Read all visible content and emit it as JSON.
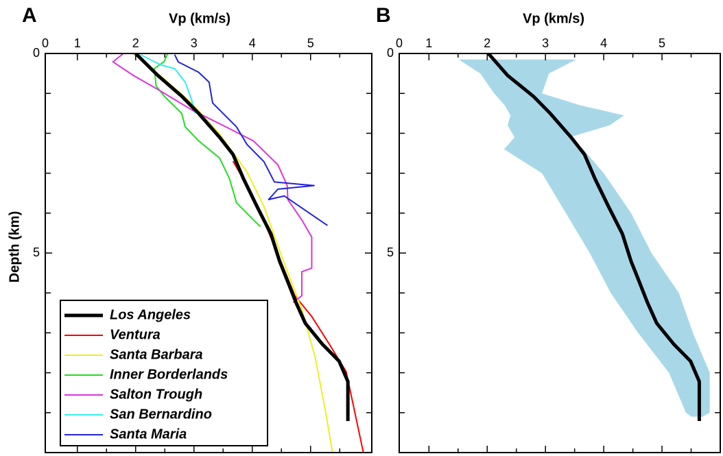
{
  "chart_data": [
    {
      "type": "line",
      "panel": "A",
      "xlabel": "Vp (km/s)",
      "ylabel": "Depth (km)",
      "xlim": [
        0.45,
        6.05
      ],
      "ylim": [
        0,
        10
      ],
      "y_inverted": true,
      "xticks": [
        {
          "value": 0.45,
          "label": "0"
        },
        1,
        2,
        3,
        4,
        5
      ],
      "xminor": [
        1.5,
        2.5,
        3.5,
        4.5,
        5.5
      ],
      "yticks": [
        0,
        5
      ],
      "yminor": [
        1,
        2,
        3,
        4,
        6,
        7,
        8,
        9
      ],
      "legend": "lower-left",
      "series": [
        {
          "name": "Ventura",
          "color": "#ff0000",
          "width": 2,
          "x": [
            3.67,
            3.91,
            4.14,
            4.44,
            4.73,
            5.02,
            5.32,
            5.61,
            5.76,
            5.91
          ],
          "values": [
            2.7,
            3.3,
            4.0,
            5.03,
            6.07,
            6.59,
            7.28,
            7.97,
            9.0,
            10.03
          ]
        },
        {
          "name": "Santa Barbara",
          "color": "#eeee22",
          "width": 2,
          "x": [
            1.96,
            2.49,
            2.96,
            3.44,
            3.91,
            4.2,
            4.49,
            4.85,
            5.08,
            5.26,
            5.38
          ],
          "values": [
            0,
            0.64,
            1.24,
            2.02,
            2.97,
            3.83,
            5.03,
            6.41,
            7.62,
            9.0,
            10.03
          ]
        },
        {
          "name": "Inner Borderlands",
          "color": "#22dd22",
          "width": 2,
          "x": [
            2.55,
            2.49,
            2.32,
            2.35,
            2.49,
            2.79,
            2.85,
            3.08,
            3.44,
            3.61,
            3.73,
            4.02,
            4.14
          ],
          "values": [
            0,
            0.2,
            0.38,
            0.81,
            1.07,
            1.5,
            1.84,
            2.19,
            2.62,
            3.14,
            3.74,
            4.17,
            4.34
          ]
        },
        {
          "name": "Salton Trough",
          "color": "#dd33dd",
          "width": 2,
          "x": [
            1.79,
            1.61,
            1.96,
            2.38,
            2.96,
            3.55,
            4.02,
            4.44,
            4.6,
            4.61,
            4.85,
            5.02,
            5.02,
            4.85,
            4.85,
            4.7
          ],
          "values": [
            0,
            0.21,
            0.55,
            0.9,
            1.41,
            1.84,
            2.19,
            2.79,
            3.31,
            3.66,
            4.17,
            4.6,
            5.38,
            5.47,
            6.07,
            6.24
          ]
        },
        {
          "name": "San Bernardino",
          "color": "#33eeee",
          "width": 2,
          "x": [
            2.08,
            2.44,
            2.67,
            2.85,
            2.96,
            3.02
          ],
          "values": [
            0.03,
            0.29,
            0.38,
            0.72,
            1.16,
            1.5
          ]
        },
        {
          "name": "Santa Maria",
          "color": "#2222dd",
          "width": 2,
          "x": [
            2.67,
            2.73,
            3.08,
            3.26,
            3.32,
            3.73,
            3.91,
            4.2,
            4.38,
            5.06,
            4.44,
            4.28,
            4.55,
            5.29
          ],
          "values": [
            0.03,
            0.21,
            0.47,
            0.72,
            1.24,
            1.84,
            2.28,
            2.71,
            3.22,
            3.31,
            3.4,
            3.66,
            3.57,
            4.31
          ]
        },
        {
          "name": "Los Angeles",
          "color": "#000000",
          "width": 5,
          "x": [
            2.0,
            2.38,
            2.79,
            3.08,
            3.44,
            3.67,
            3.85,
            4.08,
            4.32,
            4.47,
            4.61,
            4.75,
            4.91,
            5.2,
            5.49,
            5.64,
            5.64
          ],
          "values": [
            0,
            0.55,
            1.07,
            1.5,
            2.1,
            2.53,
            3.14,
            3.83,
            4.52,
            5.21,
            5.72,
            6.24,
            6.76,
            7.28,
            7.71,
            8.22,
            9.21
          ]
        }
      ],
      "legend_order": [
        6,
        0,
        1,
        2,
        3,
        4,
        5
      ]
    },
    {
      "type": "line",
      "panel": "B",
      "xlabel": "Vp (km/s)",
      "xlim": [
        0.49,
        6.0
      ],
      "ylim": [
        0,
        10
      ],
      "y_inverted": true,
      "xticks": [
        {
          "value": 0.49,
          "label": "0"
        },
        1,
        2,
        3,
        4,
        5
      ],
      "xminor": [
        1.5,
        2.5,
        3.5,
        4.5,
        5.5
      ],
      "yticks": [
        0,
        5
      ],
      "yminor": [
        1,
        2,
        3,
        4,
        6,
        7,
        8,
        9
      ],
      "band": {
        "color": "#a8d8e8",
        "depth": [
          0.15,
          0.5,
          1.0,
          1.3,
          1.55,
          1.8,
          2.1,
          2.4,
          3,
          4,
          5,
          6,
          7,
          8,
          9,
          9.1
        ],
        "vp_min": [
          1.51,
          1.88,
          2.12,
          2.3,
          2.4,
          2.35,
          2.47,
          2.29,
          2.94,
          3.35,
          3.76,
          4.12,
          4.59,
          5.12,
          5.41,
          5.5
        ],
        "vp_max": [
          3.53,
          3.06,
          2.94,
          3.6,
          4.35,
          4.1,
          3.41,
          3.65,
          4.0,
          4.47,
          4.82,
          5.29,
          5.53,
          5.82,
          5.82,
          5.7
        ]
      },
      "series": [
        {
          "color": "#000000",
          "width": 5,
          "x": [
            2.02,
            2.35,
            2.79,
            3.08,
            3.44,
            3.67,
            3.85,
            4.08,
            4.32,
            4.47,
            4.61,
            4.75,
            4.91,
            5.2,
            5.49,
            5.64,
            5.64
          ],
          "values": [
            0,
            0.55,
            1.07,
            1.5,
            2.1,
            2.53,
            3.14,
            3.83,
            4.52,
            5.21,
            5.72,
            6.24,
            6.76,
            7.28,
            7.71,
            8.22,
            9.21
          ]
        }
      ]
    }
  ]
}
